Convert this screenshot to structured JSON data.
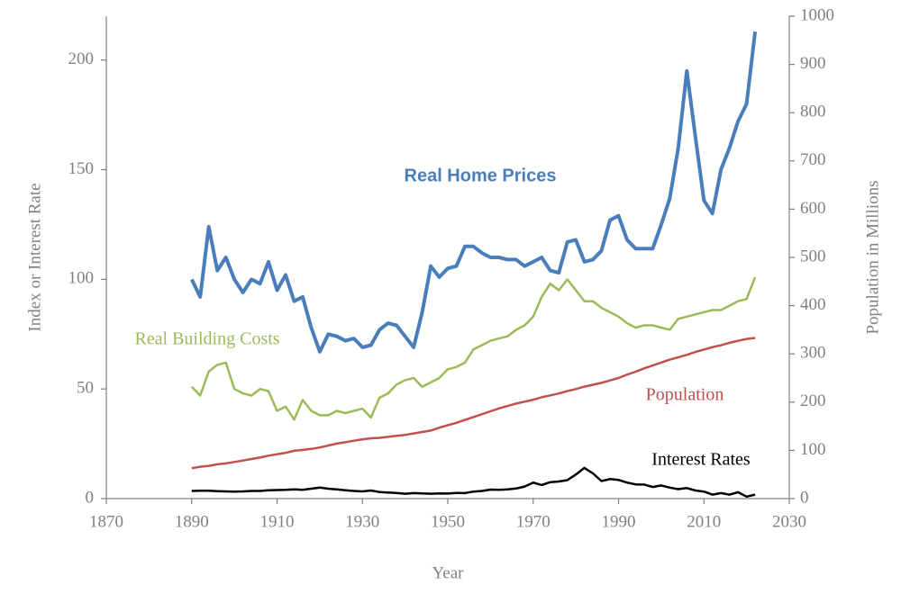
{
  "chart_data": {
    "type": "line",
    "x_label": "Year",
    "y_label": "Index or Interest Rate",
    "y2_label": "Population in Millions",
    "xlim": [
      1870,
      2030
    ],
    "xticks": [
      1870,
      1890,
      1910,
      1930,
      1950,
      1970,
      1990,
      2010,
      2030
    ],
    "ylim": [
      0,
      220
    ],
    "yticks": [
      0,
      50,
      100,
      150,
      200
    ],
    "y2lim": [
      0,
      1000
    ],
    "y2ticks": [
      0,
      100,
      200,
      300,
      400,
      500,
      600,
      700,
      800,
      900,
      1000
    ],
    "grid": false,
    "x": [
      1890,
      1892,
      1894,
      1896,
      1898,
      1900,
      1902,
      1904,
      1906,
      1908,
      1910,
      1912,
      1914,
      1916,
      1918,
      1920,
      1922,
      1924,
      1926,
      1928,
      1930,
      1932,
      1934,
      1936,
      1938,
      1940,
      1942,
      1944,
      1946,
      1948,
      1950,
      1952,
      1954,
      1956,
      1958,
      1960,
      1962,
      1964,
      1966,
      1968,
      1970,
      1972,
      1974,
      1976,
      1978,
      1980,
      1982,
      1984,
      1986,
      1988,
      1990,
      1992,
      1994,
      1996,
      1998,
      2000,
      2002,
      2004,
      2006,
      2008,
      2010,
      2012,
      2014,
      2016,
      2018,
      2020,
      2022
    ],
    "series": [
      {
        "name": "Real Home Prices",
        "color": "#4a7ebb",
        "axis": "y",
        "bold": true,
        "values": [
          100,
          92,
          124,
          104,
          110,
          100,
          94,
          100,
          98,
          108,
          95,
          102,
          90,
          92,
          78,
          67,
          75,
          74,
          72,
          73,
          69,
          70,
          77,
          80,
          79,
          74,
          69,
          85,
          106,
          101,
          105,
          106,
          115,
          115,
          112,
          110,
          110,
          109,
          109,
          106,
          108,
          110,
          104,
          103,
          117,
          118,
          108,
          109,
          113,
          127,
          129,
          118,
          114,
          114,
          114,
          125,
          137,
          160,
          195,
          165,
          136,
          130,
          150,
          160,
          172,
          180,
          213
        ]
      },
      {
        "name": "Real Building Costs",
        "color": "#9bbb59",
        "axis": "y",
        "values": [
          51,
          47,
          58,
          61,
          62,
          50,
          48,
          47,
          50,
          49,
          40,
          42,
          36,
          45,
          40,
          38,
          38,
          40,
          39,
          40,
          41,
          37,
          46,
          48,
          52,
          54,
          55,
          51,
          53,
          55,
          59,
          60,
          62,
          68,
          70,
          72,
          73,
          74,
          77,
          79,
          83,
          92,
          98,
          95,
          100,
          95,
          90,
          90,
          87,
          85,
          83,
          80,
          78,
          79,
          79,
          78,
          77,
          82,
          83,
          84,
          85,
          86,
          86,
          88,
          90,
          91,
          101
        ]
      },
      {
        "name": "Population",
        "color": "#c0504d",
        "axis": "y2",
        "values": [
          63,
          66,
          68,
          71,
          73,
          76,
          79,
          82,
          85,
          89,
          92,
          95,
          99,
          101,
          103,
          106,
          110,
          114,
          117,
          120,
          123,
          125,
          126,
          128,
          130,
          132,
          135,
          138,
          141,
          147,
          152,
          157,
          163,
          169,
          175,
          181,
          187,
          192,
          197,
          201,
          205,
          210,
          214,
          218,
          223,
          227,
          232,
          236,
          240,
          245,
          250,
          257,
          263,
          270,
          276,
          282,
          288,
          293,
          298,
          304,
          309,
          314,
          318,
          323,
          327,
          331,
          333
        ]
      },
      {
        "name": "Interest Rates",
        "color": "#000000",
        "axis": "y",
        "values": [
          3.5,
          3.6,
          3.6,
          3.4,
          3.3,
          3.2,
          3.3,
          3.5,
          3.5,
          3.8,
          3.9,
          4,
          4.2,
          4,
          4.5,
          5,
          4.5,
          4.2,
          3.8,
          3.5,
          3.3,
          3.7,
          3,
          2.8,
          2.6,
          2.2,
          2.5,
          2.4,
          2.2,
          2.4,
          2.3,
          2.6,
          2.5,
          3.2,
          3.5,
          4.1,
          4,
          4.2,
          4.6,
          5.5,
          7.3,
          6.2,
          7.5,
          7.8,
          8.4,
          11,
          14,
          11.5,
          8,
          8.9,
          8.5,
          7.3,
          6.5,
          6.4,
          5.3,
          6,
          5,
          4.3,
          4.8,
          3.7,
          3.2,
          1.8,
          2.5,
          1.8,
          2.9,
          0.9,
          1.8
        ]
      }
    ]
  }
}
